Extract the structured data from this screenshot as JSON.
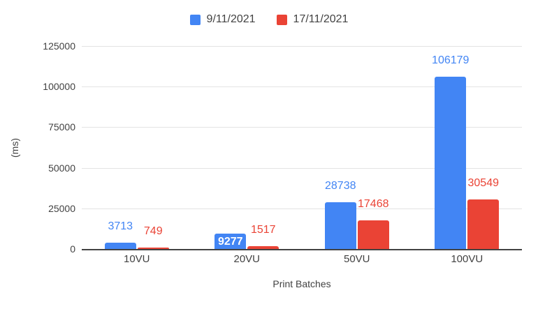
{
  "chart_data": {
    "type": "bar",
    "title": "",
    "categories": [
      "10VU",
      "20VU",
      "50VU",
      "100VU"
    ],
    "series": [
      {
        "name": "9/11/2021",
        "color": "#4285f4",
        "values": [
          3713,
          9277,
          28738,
          106179
        ]
      },
      {
        "name": "17/11/2021",
        "color": "#ea4335",
        "values": [
          749,
          1517,
          17468,
          30549
        ]
      }
    ],
    "xlabel": "Print Batches",
    "ylabel": "(ms)",
    "ylim": [
      0,
      125000
    ],
    "yticks": [
      0,
      25000,
      50000,
      75000,
      100000,
      125000
    ],
    "grid": true,
    "legend_position": "top",
    "data_labels": true,
    "label_placement": [
      [
        "above",
        "inside",
        "above",
        "above"
      ],
      [
        "above",
        "above",
        "above",
        "above"
      ]
    ]
  },
  "colors": {
    "background": "#ffffff",
    "axis_text": "#424242",
    "gridline": "#e3e3e3",
    "axis_line": "#424242",
    "inside_label_text": "#ffffff"
  }
}
